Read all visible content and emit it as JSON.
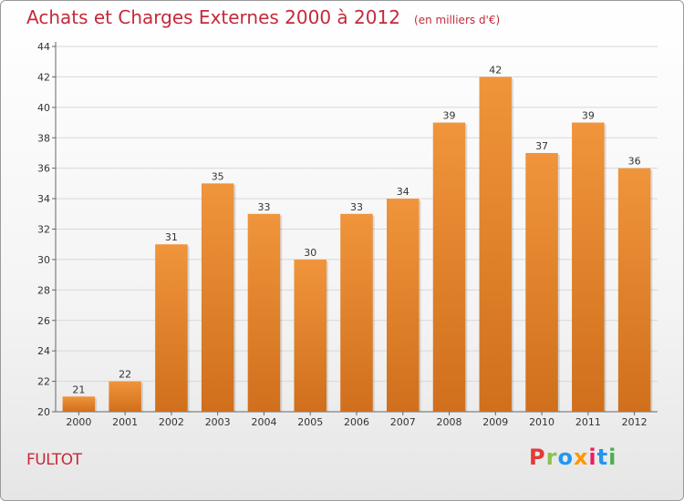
{
  "header": {
    "title": "Achats et Charges Externes 2000 à 2012",
    "unit": "(en milliers d'€)"
  },
  "footer": {
    "place": "FULTOT",
    "logo": "Proxiti",
    "logo_colors": [
      "#e53935",
      "#8bc34a",
      "#2196f3",
      "#ff9800",
      "#e91e63",
      "#2196f3",
      "#4caf50"
    ]
  },
  "chart_data": {
    "type": "bar",
    "title": "Achats et Charges Externes 2000 à 2012",
    "subtitle": "(en milliers d'€)",
    "categories": [
      "2000",
      "2001",
      "2002",
      "2003",
      "2004",
      "2005",
      "2006",
      "2007",
      "2008",
      "2009",
      "2010",
      "2011",
      "2012"
    ],
    "values": [
      21,
      22,
      31,
      35,
      33,
      30,
      33,
      34,
      39,
      42,
      37,
      39,
      36
    ],
    "ylim": [
      20,
      44
    ],
    "yticks": [
      20,
      22,
      24,
      26,
      28,
      30,
      32,
      34,
      36,
      38,
      40,
      42,
      44
    ],
    "xlabel": "",
    "ylabel": "",
    "grid": true,
    "bar_color": "#f0953c",
    "bar_color_dark": "#d06f1c",
    "show_value_labels": true
  }
}
